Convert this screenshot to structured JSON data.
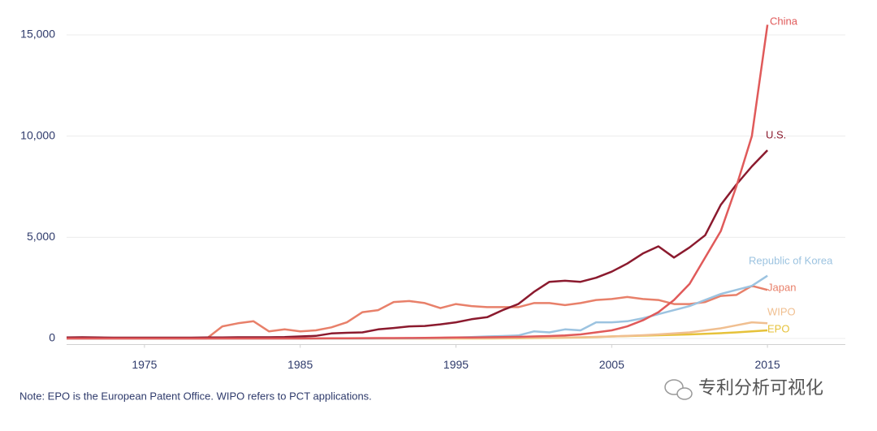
{
  "chart_data": {
    "type": "line",
    "x": [
      1970,
      1971,
      1972,
      1973,
      1974,
      1975,
      1976,
      1977,
      1978,
      1979,
      1980,
      1981,
      1982,
      1983,
      1984,
      1985,
      1986,
      1987,
      1988,
      1989,
      1990,
      1991,
      1992,
      1993,
      1994,
      1995,
      1996,
      1997,
      1998,
      1999,
      2000,
      2001,
      2002,
      2003,
      2004,
      2005,
      2006,
      2007,
      2008,
      2009,
      2010,
      2011,
      2012,
      2013,
      2014,
      2015
    ],
    "series": [
      {
        "name": "China",
        "color": "#e05a5a",
        "values": [
          0,
          0,
          0,
          0,
          0,
          0,
          0,
          0,
          0,
          0,
          0,
          0,
          0,
          0,
          0,
          0,
          5,
          10,
          10,
          15,
          20,
          20,
          25,
          30,
          40,
          50,
          50,
          60,
          70,
          80,
          100,
          120,
          150,
          200,
          300,
          400,
          600,
          900,
          1300,
          1900,
          2700,
          4000,
          5300,
          7500,
          10000,
          15500
        ]
      },
      {
        "name": "U.S.",
        "color": "#8b1a2e",
        "values": [
          50,
          60,
          50,
          40,
          40,
          40,
          40,
          40,
          40,
          50,
          50,
          60,
          60,
          60,
          70,
          100,
          130,
          250,
          280,
          300,
          450,
          520,
          600,
          620,
          700,
          800,
          950,
          1050,
          1400,
          1700,
          2300,
          2800,
          2850,
          2800,
          3000,
          3300,
          3700,
          4200,
          4550,
          4000,
          4500,
          5100,
          6600,
          7600,
          8500,
          9300
        ]
      },
      {
        "name": "Republic of Korea",
        "color": "#9cc3e0",
        "values": [
          0,
          0,
          0,
          0,
          0,
          0,
          0,
          0,
          0,
          0,
          0,
          0,
          0,
          0,
          0,
          0,
          0,
          0,
          0,
          0,
          5,
          10,
          10,
          20,
          30,
          50,
          70,
          100,
          120,
          150,
          350,
          300,
          450,
          400,
          800,
          800,
          850,
          1000,
          1200,
          1400,
          1600,
          1900,
          2200,
          2400,
          2600,
          3100
        ]
      },
      {
        "name": "Japan",
        "color": "#e8806a",
        "values": [
          0,
          0,
          0,
          0,
          0,
          0,
          0,
          0,
          0,
          0,
          600,
          750,
          850,
          350,
          450,
          350,
          400,
          550,
          800,
          1300,
          1400,
          1800,
          1850,
          1750,
          1500,
          1700,
          1600,
          1550,
          1550,
          1550,
          1750,
          1750,
          1650,
          1750,
          1900,
          1950,
          2050,
          1950,
          1900,
          1700,
          1700,
          1800,
          2100,
          2150,
          2600,
          2400
        ]
      },
      {
        "name": "WIPO",
        "color": "#f0bf90",
        "values": [
          0,
          0,
          0,
          0,
          0,
          0,
          0,
          0,
          0,
          0,
          0,
          0,
          0,
          0,
          0,
          0,
          0,
          0,
          0,
          0,
          0,
          0,
          0,
          0,
          0,
          0,
          0,
          5,
          10,
          20,
          30,
          40,
          50,
          60,
          80,
          100,
          130,
          160,
          200,
          250,
          300,
          400,
          500,
          650,
          800,
          750
        ]
      },
      {
        "name": "EPO",
        "color": "#e6c23a",
        "values": [
          0,
          0,
          0,
          0,
          0,
          0,
          0,
          0,
          0,
          0,
          0,
          0,
          0,
          0,
          0,
          0,
          0,
          0,
          0,
          0,
          0,
          0,
          0,
          0,
          0,
          0,
          0,
          0,
          5,
          10,
          20,
          30,
          40,
          50,
          70,
          100,
          120,
          140,
          160,
          180,
          200,
          230,
          260,
          300,
          350,
          400
        ]
      }
    ],
    "xlim": [
      1970,
      2020
    ],
    "ylim": [
      -300,
      16000
    ],
    "xticks": [
      1975,
      1985,
      1995,
      2005,
      2015
    ],
    "yticks": [
      0,
      {
        "value": 5000,
        "label": "5,000"
      },
      {
        "value": 10000,
        "label": "10,000"
      },
      {
        "value": 15000,
        "label": "15,000"
      }
    ],
    "grid": true,
    "note": "Note: EPO is the European Patent Office. WIPO refers to PCT applications.",
    "watermark": "专利分析可视化"
  }
}
